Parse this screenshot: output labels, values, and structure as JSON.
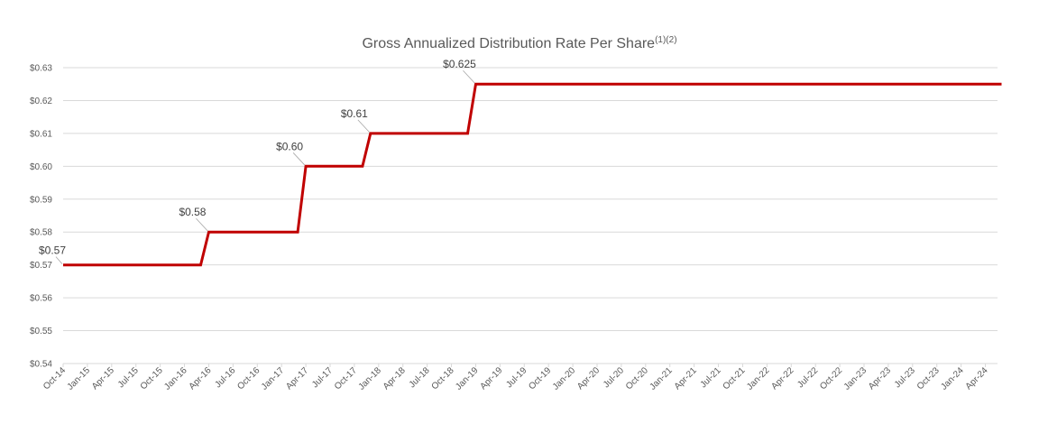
{
  "chart_data": {
    "type": "line",
    "title": "Gross Annualized Distribution Rate Per Share",
    "title_superscript": "(1)(2)",
    "xlabel": "",
    "ylabel": "",
    "ylim": [
      0.54,
      0.63
    ],
    "y_ticks": [
      "$0.54",
      "$0.55",
      "$0.56",
      "$0.57",
      "$0.58",
      "$0.59",
      "$0.60",
      "$0.61",
      "$0.62",
      "$0.63"
    ],
    "x_ticks": [
      "Oct-14",
      "Jan-15",
      "Apr-15",
      "Jul-15",
      "Oct-15",
      "Jan-16",
      "Apr-16",
      "Jul-16",
      "Oct-16",
      "Jan-17",
      "Apr-17",
      "Jul-17",
      "Oct-17",
      "Jan-18",
      "Apr-18",
      "Jul-18",
      "Oct-18",
      "Jan-19",
      "Apr-19",
      "Jul-19",
      "Oct-19",
      "Jan-20",
      "Apr-20",
      "Jul-20",
      "Oct-20",
      "Jan-21",
      "Apr-21",
      "Jul-21",
      "Oct-21",
      "Jan-22",
      "Apr-22",
      "Jul-22",
      "Oct-22",
      "Jan-23",
      "Apr-23",
      "Jul-23",
      "Oct-23",
      "Jan-24",
      "Apr-24"
    ],
    "grid": true,
    "color": "#c00000",
    "series": [
      {
        "points": [
          {
            "x": "2014-10",
            "y": 0.57
          },
          {
            "x": "2016-03",
            "y": 0.57
          },
          {
            "x": "2016-04",
            "y": 0.58
          },
          {
            "x": "2017-03",
            "y": 0.58
          },
          {
            "x": "2017-04",
            "y": 0.6
          },
          {
            "x": "2017-11",
            "y": 0.6
          },
          {
            "x": "2017-12",
            "y": 0.61
          },
          {
            "x": "2018-12",
            "y": 0.61
          },
          {
            "x": "2019-01",
            "y": 0.625
          },
          {
            "x": "2024-06",
            "y": 0.625
          }
        ]
      }
    ],
    "annotations": [
      {
        "text": "$0.57",
        "x": "2014-10",
        "y": 0.57
      },
      {
        "text": "$0.58",
        "x": "2016-04",
        "y": 0.58
      },
      {
        "text": "$0.60",
        "x": "2017-04",
        "y": 0.6
      },
      {
        "text": "$0.61",
        "x": "2017-12",
        "y": 0.61
      },
      {
        "text": "$0.625",
        "x": "2019-01",
        "y": 0.625
      }
    ]
  }
}
